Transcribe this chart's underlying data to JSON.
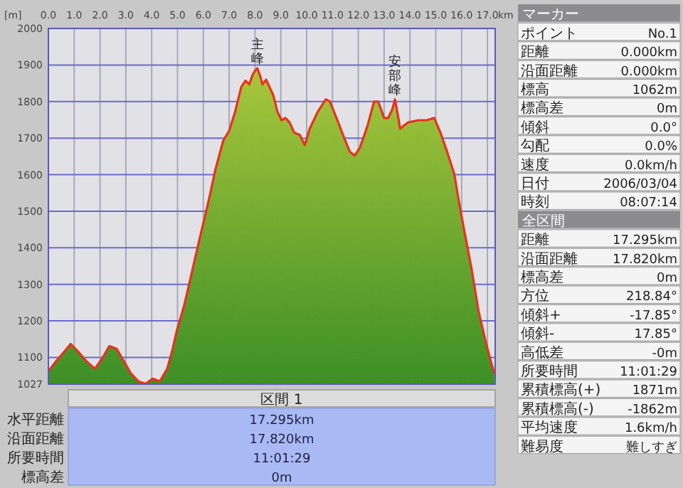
{
  "chart_data": {
    "type": "area",
    "xlabel": "km",
    "ylabel": "[m]",
    "grid": true,
    "xlim": [
      0,
      17.3
    ],
    "ylim": [
      1027,
      2000
    ],
    "xticks": [
      {
        "value": 0,
        "label": "0.0"
      },
      {
        "value": 1,
        "label": "1.0"
      },
      {
        "value": 2,
        "label": "2.0"
      },
      {
        "value": 3,
        "label": "3.0"
      },
      {
        "value": 4,
        "label": "4.0"
      },
      {
        "value": 5,
        "label": "5.0"
      },
      {
        "value": 6,
        "label": "6.0"
      },
      {
        "value": 7,
        "label": "7.0"
      },
      {
        "value": 8,
        "label": "8.0"
      },
      {
        "value": 9,
        "label": "9.0"
      },
      {
        "value": 10,
        "label": "10.0"
      },
      {
        "value": 11,
        "label": "11.0"
      },
      {
        "value": 12,
        "label": "12.0"
      },
      {
        "value": 13,
        "label": "13.0"
      },
      {
        "value": 14,
        "label": "14.0"
      },
      {
        "value": 15,
        "label": "15.0"
      },
      {
        "value": 16,
        "label": "16.0"
      },
      {
        "value": 17,
        "label": "17.0"
      }
    ],
    "yticks": [
      1027,
      1100,
      1200,
      1300,
      1400,
      1500,
      1600,
      1700,
      1800,
      1900,
      2000
    ],
    "series": [
      {
        "color": "#e8321e",
        "x": [
          0,
          0.3,
          0.63,
          0.86,
          1.14,
          1.47,
          1.8,
          2.08,
          2.36,
          2.64,
          2.92,
          3.2,
          3.48,
          3.76,
          4.04,
          4.32,
          4.6,
          4.79,
          4.98,
          5.26,
          5.54,
          5.82,
          6.22,
          6.46,
          6.77,
          7.0,
          7.23,
          7.47,
          7.63,
          7.78,
          7.91,
          8.01,
          8.09,
          8.21,
          8.29,
          8.43,
          8.56,
          8.71,
          8.87,
          9.03,
          9.18,
          9.34,
          9.52,
          9.73,
          9.93,
          10.12,
          10.43,
          10.74,
          10.9,
          11.13,
          11.44,
          11.67,
          11.86,
          12.07,
          12.37,
          12.61,
          12.77,
          13.0,
          13.15,
          13.31,
          13.42,
          13.51,
          13.62,
          13.93,
          14.32,
          14.64,
          14.94,
          15.18,
          15.41,
          15.72,
          15.88,
          16.1,
          16.38,
          16.66,
          16.94,
          17.13,
          17.27
        ],
        "values": [
          1062,
          1090,
          1117,
          1137,
          1117,
          1090,
          1069,
          1097,
          1131,
          1124,
          1090,
          1056,
          1035,
          1028,
          1042,
          1035,
          1069,
          1117,
          1175,
          1243,
          1328,
          1414,
          1533,
          1612,
          1693,
          1720,
          1772,
          1840,
          1857,
          1847,
          1874,
          1885,
          1891,
          1868,
          1847,
          1860,
          1840,
          1817,
          1772,
          1749,
          1755,
          1743,
          1715,
          1709,
          1681,
          1726,
          1772,
          1806,
          1800,
          1760,
          1703,
          1663,
          1652,
          1675,
          1737,
          1800,
          1800,
          1755,
          1755,
          1777,
          1806,
          1772,
          1726,
          1743,
          1749,
          1749,
          1755,
          1715,
          1669,
          1601,
          1533,
          1448,
          1345,
          1226,
          1141,
          1090,
          1056
        ]
      }
    ],
    "annotations": [
      {
        "text": "主峰",
        "x": 8.09,
        "y": 1891
      },
      {
        "text": "安部峰",
        "x": 13.42,
        "y": 1806
      },
      "マーカー",
      "ポイント",
      "No.1",
      "距離",
      "0.000km",
      "沿面距離",
      "0.000km",
      "標高",
      "1062m",
      "標高差",
      "0m",
      "傾斜",
      "0.0°",
      "勾配",
      "0.0%",
      "速度",
      "0.0km/h",
      "日付",
      "2006/03/04",
      "時刻",
      "08:07:14",
      "全区間",
      "距離",
      "17.295km",
      "沿面距離",
      "17.820km",
      "標高差",
      "0m",
      "方位",
      "218.84°",
      "傾斜+",
      "-17.85°",
      "傾斜-",
      "17.85°",
      "高低差",
      "-0m",
      "所要時間",
      "11:01:29",
      "累積標高(+)",
      "1871m",
      "累積標高(-)",
      "-1862m",
      "平均速度",
      "1.6km/h",
      "難易度",
      "難しすぎ",
      "区間 1",
      "水平距離",
      "17.295km",
      "沿面距離",
      "17.820km",
      "所要時間",
      "11:01:29",
      "標高差",
      "0m"
    ]
  }
}
